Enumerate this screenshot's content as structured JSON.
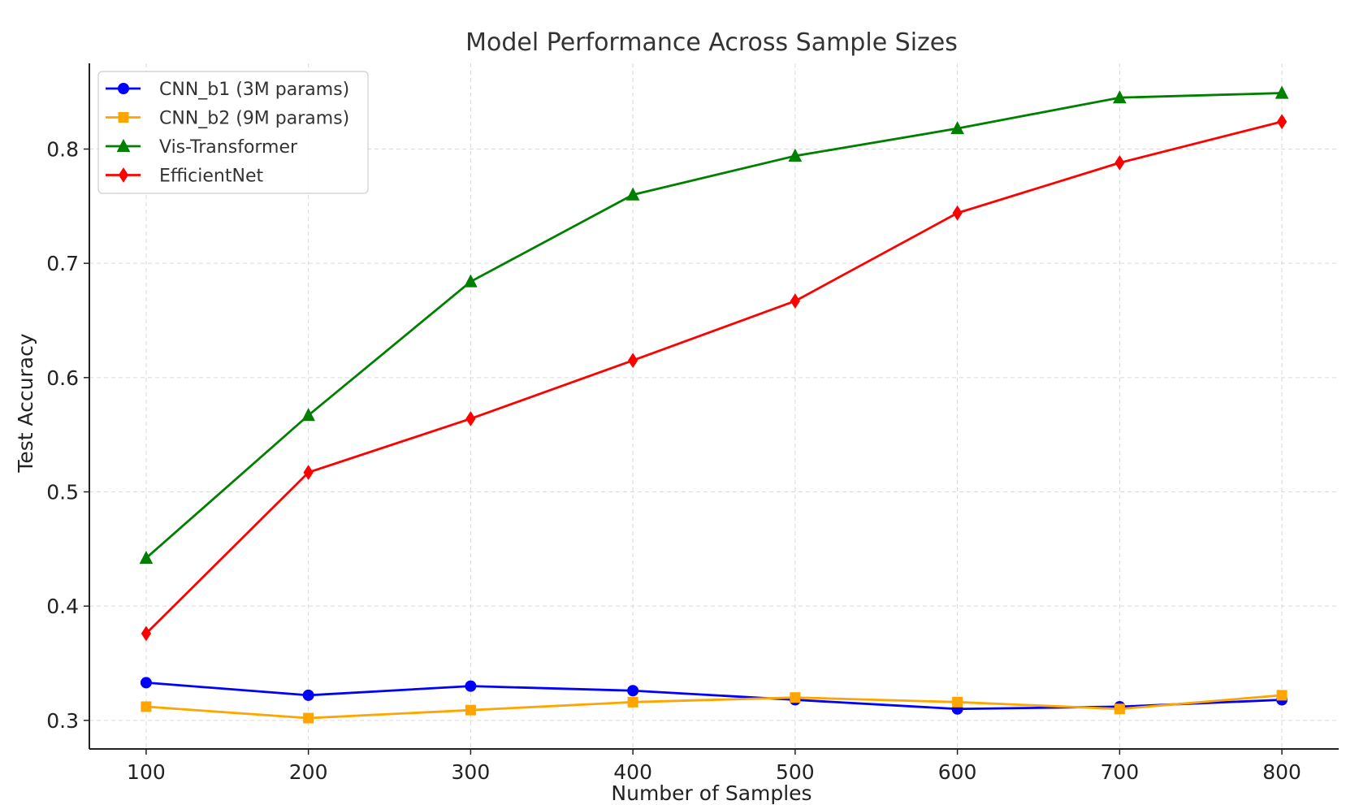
{
  "chart_data": {
    "type": "line",
    "title": "Model Performance Across Sample Sizes",
    "xlabel": "Number of Samples",
    "ylabel": "Test Accuracy",
    "x": [
      100,
      200,
      300,
      400,
      500,
      600,
      700,
      800
    ],
    "x_ticks": [
      "100",
      "200",
      "300",
      "400",
      "500",
      "600",
      "700",
      "800"
    ],
    "y_ticks": [
      "0.3",
      "0.4",
      "0.5",
      "0.6",
      "0.7",
      "0.8"
    ],
    "xlim": [
      65,
      835
    ],
    "ylim": [
      0.275,
      0.875
    ],
    "grid": true,
    "legend_position": "top-left",
    "series": [
      {
        "name": "CNN_b1 (3M params)",
        "color": "#0000ff",
        "marker": "circle",
        "values": [
          0.333,
          0.322,
          0.33,
          0.326,
          0.318,
          0.31,
          0.312,
          0.318
        ]
      },
      {
        "name": "CNN_b2 (9M params)",
        "color": "#ffa500",
        "marker": "square",
        "values": [
          0.312,
          0.302,
          0.309,
          0.316,
          0.32,
          0.316,
          0.31,
          0.322
        ]
      },
      {
        "name": "Vis-Transformer",
        "color": "#008000",
        "marker": "triangle",
        "values": [
          0.442,
          0.567,
          0.684,
          0.76,
          0.794,
          0.818,
          0.845,
          0.849
        ]
      },
      {
        "name": "EfficientNet",
        "color": "#ff0000",
        "marker": "diamond",
        "values": [
          0.376,
          0.517,
          0.564,
          0.615,
          0.667,
          0.744,
          0.788,
          0.824
        ]
      }
    ]
  }
}
